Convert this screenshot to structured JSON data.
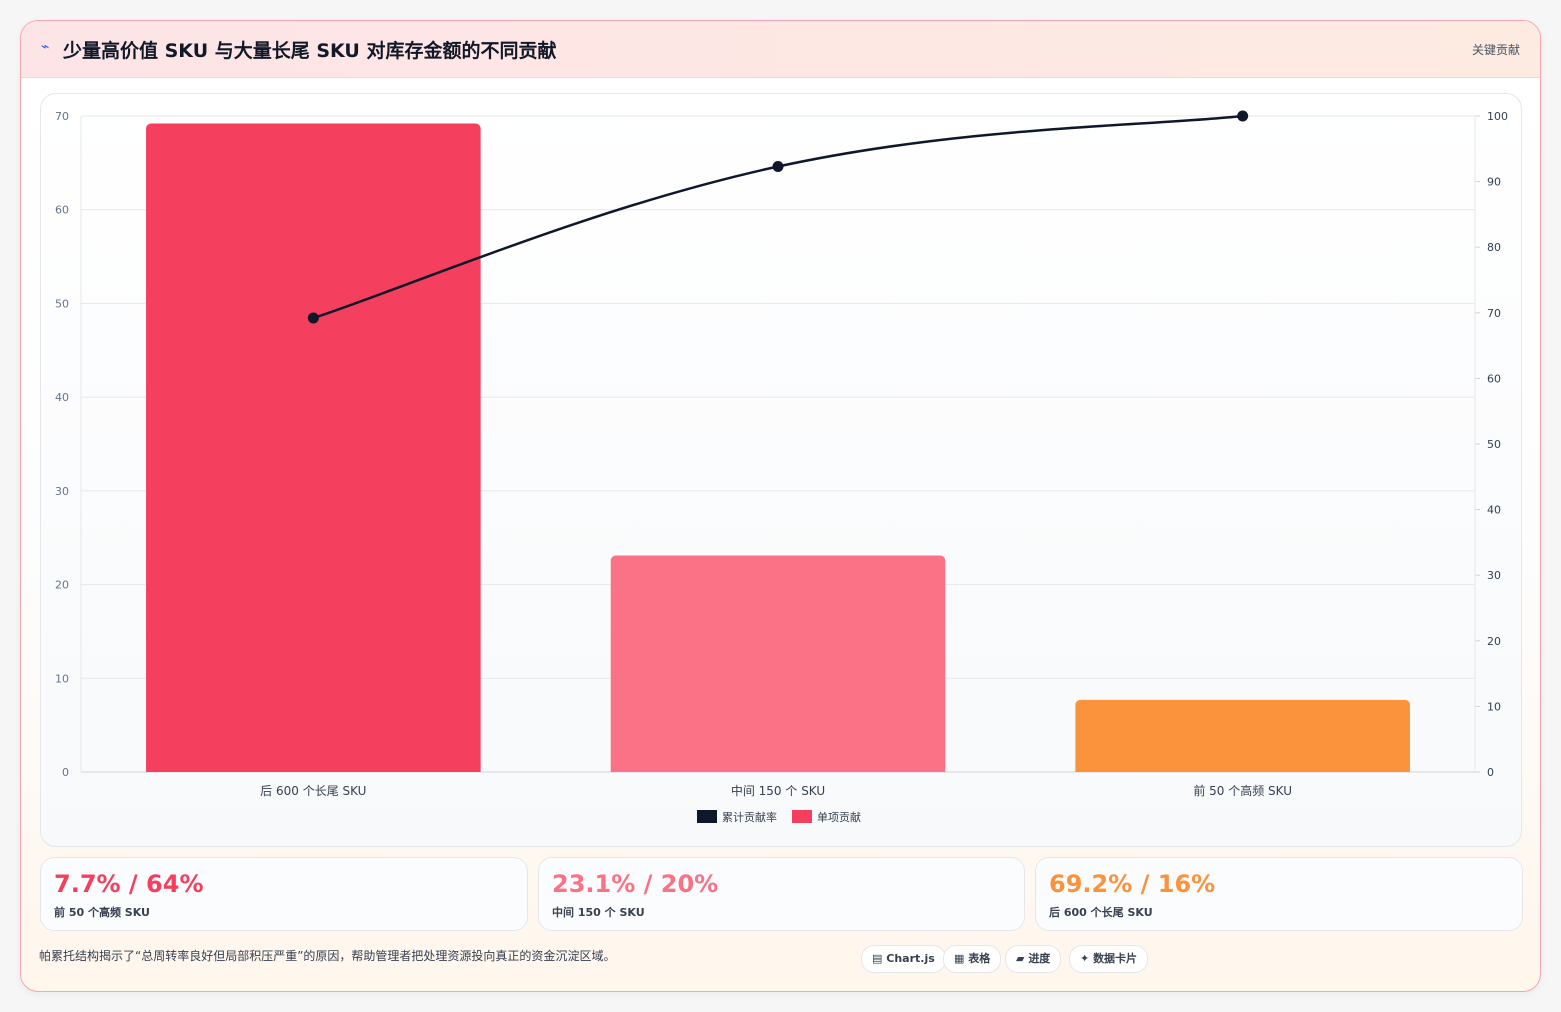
{
  "header": {
    "icon": "chart-line-icon",
    "title": "少量高价值 SKU 与大量长尾 SKU 对库存金额的不同贡献",
    "tag": "关键贡献"
  },
  "chart_data": {
    "type": "bar",
    "categories": [
      "后 600 个长尾 SKU",
      "中间 150 个 SKU",
      "前 50 个高频 SKU"
    ],
    "series": [
      {
        "name": "单项贡献",
        "type": "bar",
        "axis": "left",
        "values": [
          69.2,
          23.1,
          7.7
        ],
        "colors": [
          "#f43f5e",
          "#fb7185",
          "#fb923c"
        ]
      },
      {
        "name": "累计贡献率",
        "type": "line",
        "axis": "right",
        "values": [
          69.2,
          92.3,
          100
        ],
        "color": "#0f172a"
      }
    ],
    "ylim": [
      0,
      70
    ],
    "y_ticks": [
      0,
      10,
      20,
      30,
      40,
      50,
      60,
      70
    ],
    "y2lim": [
      0,
      100
    ],
    "y2_ticks": [
      0,
      10,
      20,
      30,
      40,
      50,
      60,
      70,
      80,
      90,
      100
    ],
    "legend": [
      {
        "label": "累计贡献率",
        "color": "#0f172a"
      },
      {
        "label": "单项贡献",
        "color": "#f43f5e"
      }
    ],
    "legend_position": "bottom",
    "grid": true
  },
  "stats": [
    {
      "value": "7.7% / 64%",
      "label": "前 50 个高频 SKU",
      "color": "#f43f5e"
    },
    {
      "value": "23.1% / 20%",
      "label": "中间 150 个 SKU",
      "color": "#fb7185"
    },
    {
      "value": "69.2% / 16%",
      "label": "后 600 个长尾 SKU",
      "color": "#fb923c"
    }
  ],
  "footer": {
    "note": "帕累托结构揭示了“总周转率良好但局部积压严重”的原因，帮助管理者把处理资源投向真正的资金沉淀区域。",
    "pills": [
      {
        "icon": "chart-icon",
        "glyph": "▤",
        "label": "Chart.js"
      },
      {
        "icon": "table-icon",
        "glyph": "▦",
        "label": "表格"
      },
      {
        "icon": "progress-icon",
        "glyph": "▰",
        "label": "进度"
      },
      {
        "icon": "sparkle-icon",
        "glyph": "✦",
        "label": "数据卡片"
      }
    ]
  }
}
